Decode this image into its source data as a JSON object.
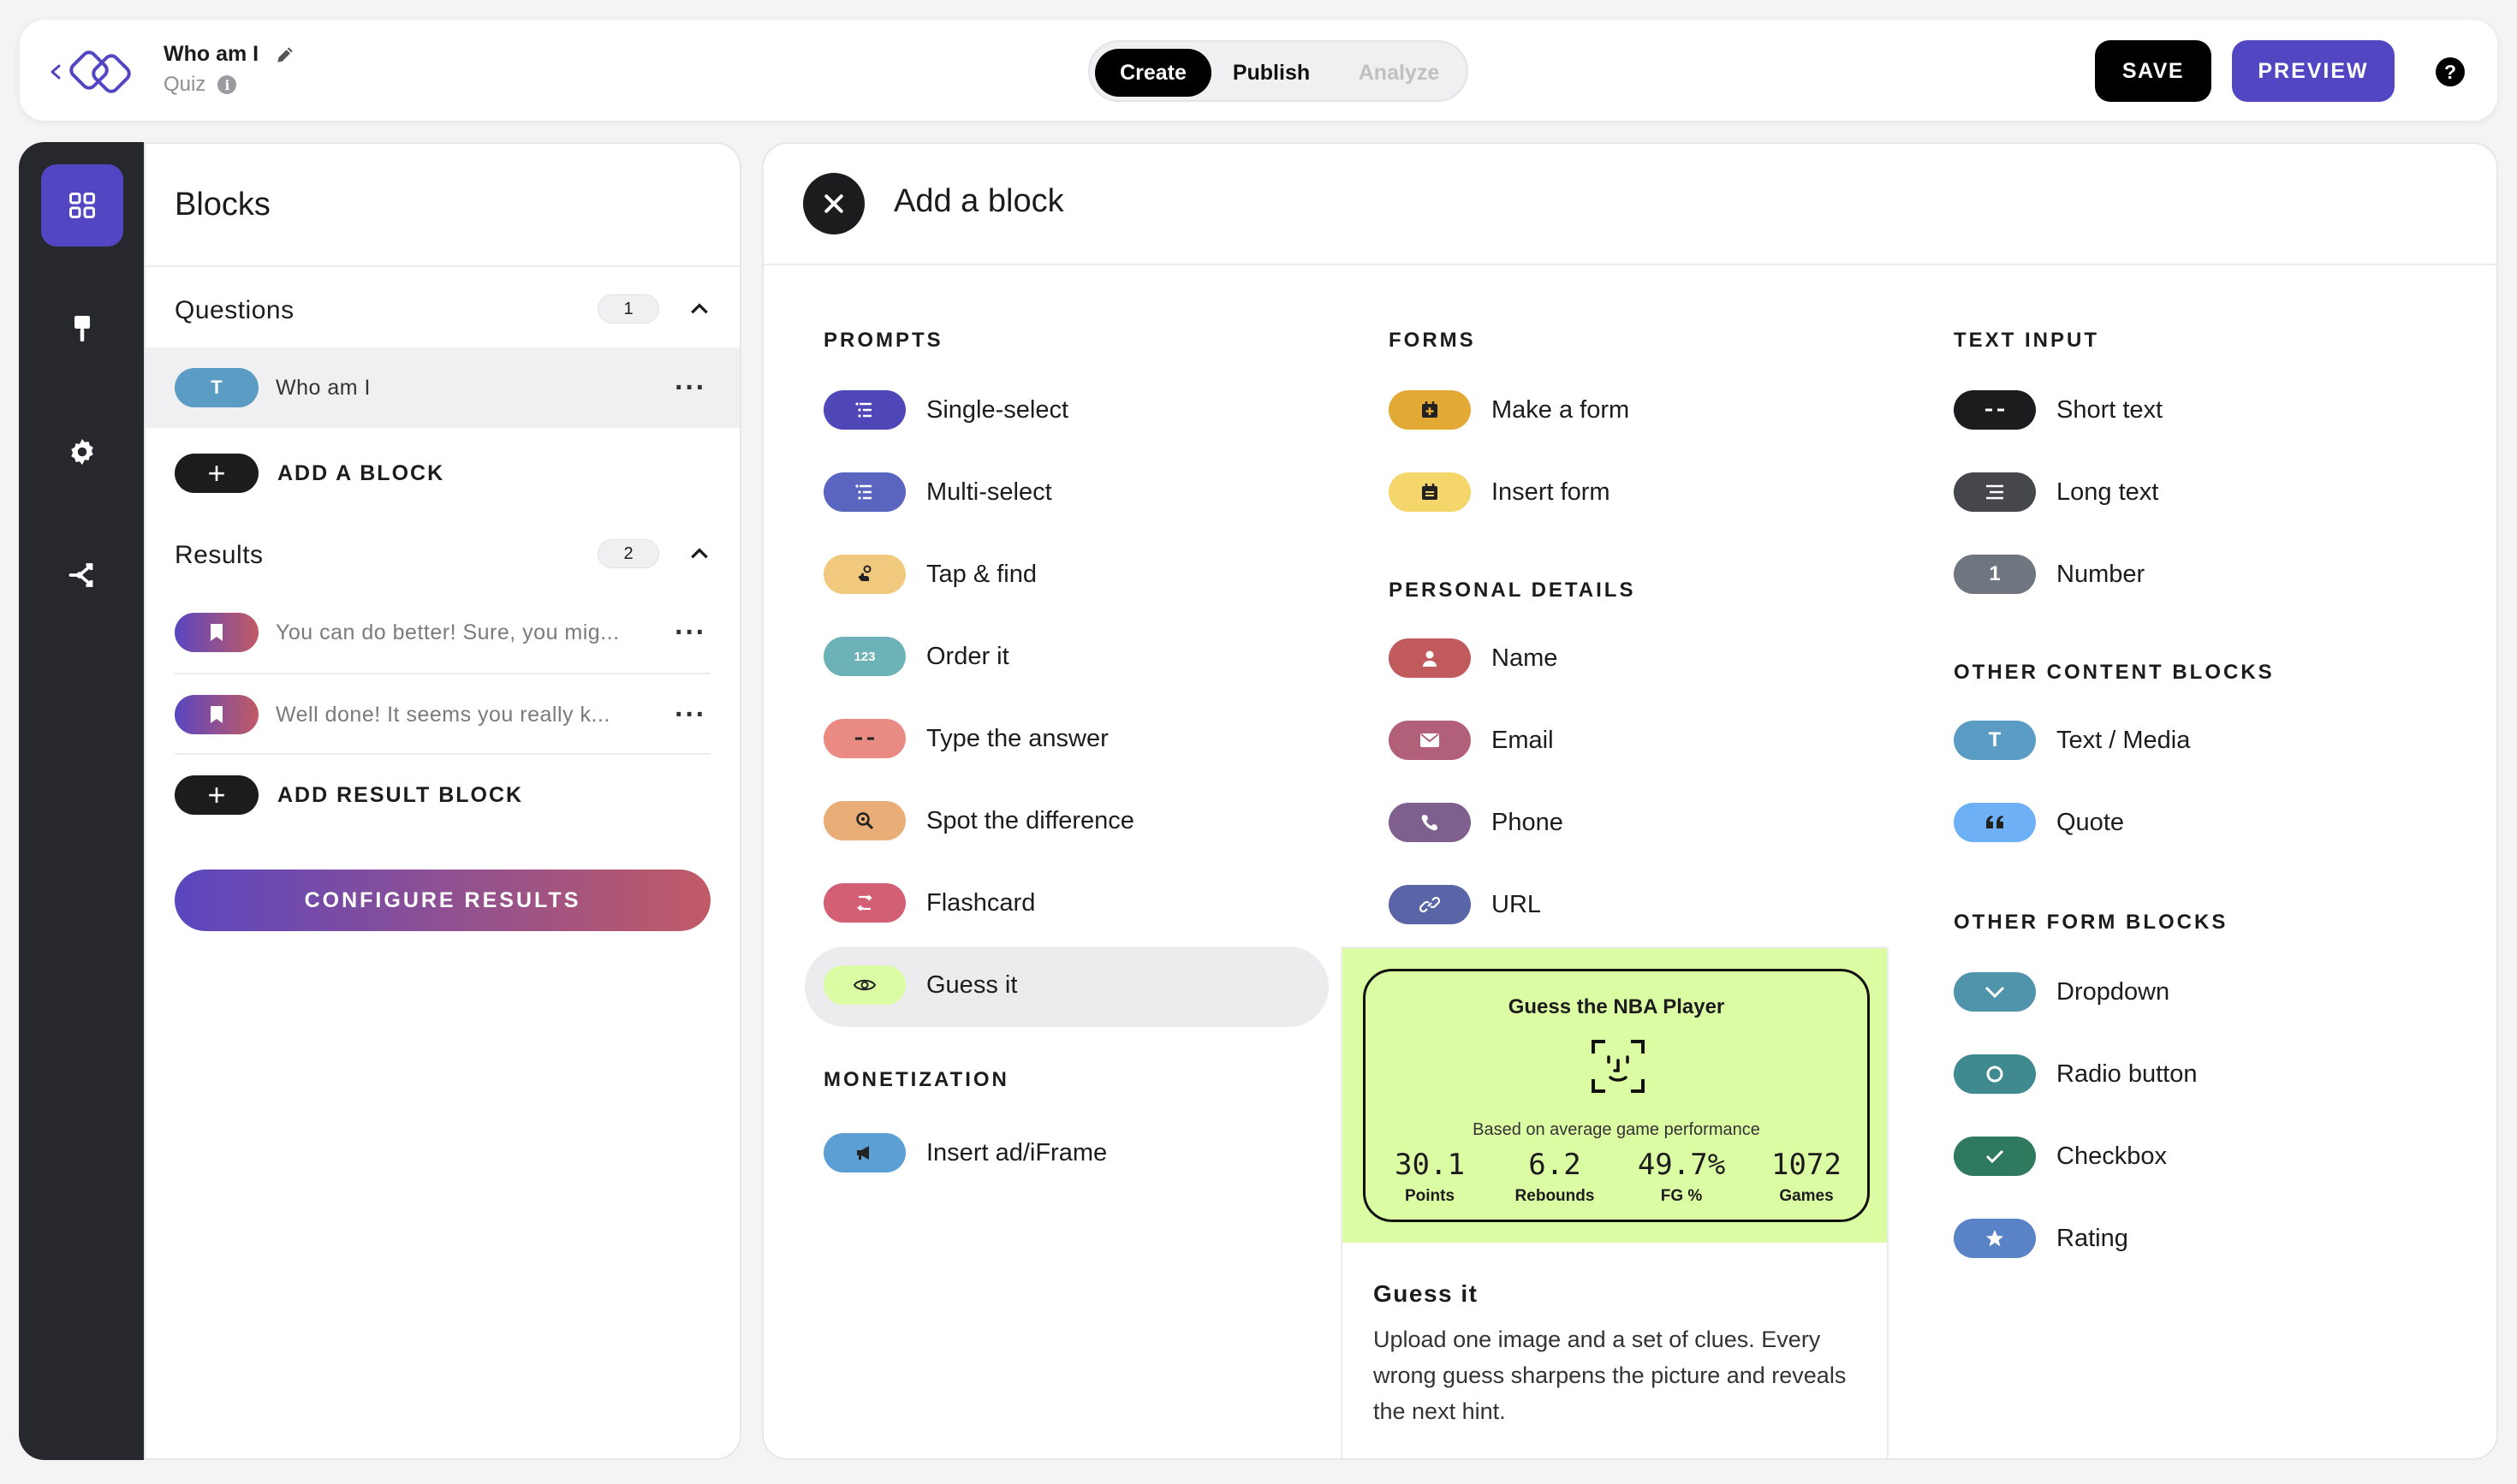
{
  "header": {
    "title": "Who am I",
    "subtitle": "Quiz",
    "tabs": [
      "Create",
      "Publish",
      "Analyze"
    ],
    "save_label": "SAVE",
    "preview_label": "PREVIEW",
    "help": "?"
  },
  "sidebar": {
    "title": "Blocks",
    "questions": {
      "label": "Questions",
      "count": "1",
      "items": [
        {
          "badge": "T",
          "label": "Who am I"
        }
      ],
      "add_label": "ADD A BLOCK"
    },
    "results": {
      "label": "Results",
      "count": "2",
      "items": [
        {
          "label": "You can do better! Sure, you mig..."
        },
        {
          "label": "Well done! It seems you really k..."
        }
      ],
      "add_label": "ADD RESULT BLOCK"
    },
    "configure_label": "CONFIGURE RESULTS"
  },
  "panel": {
    "title": "Add a block",
    "prompts": {
      "heading": "PROMPTS",
      "items": [
        "Single-select",
        "Multi-select",
        "Tap & find",
        "Order it",
        "Type the answer",
        "Spot the difference",
        "Flashcard",
        "Guess it"
      ]
    },
    "monetization": {
      "heading": "MONETIZATION",
      "items": [
        "Insert ad/iFrame"
      ]
    },
    "forms": {
      "heading": "FORMS",
      "items": [
        "Make a form",
        "Insert form"
      ]
    },
    "personal": {
      "heading": "PERSONAL DETAILS",
      "items": [
        "Name",
        "Email",
        "Phone",
        "URL"
      ]
    },
    "text_input": {
      "heading": "TEXT INPUT",
      "items": [
        "Short text",
        "Long text",
        "Number"
      ],
      "number_badge": "1",
      "order_badge": "123"
    },
    "other_content": {
      "heading": "OTHER CONTENT BLOCKS",
      "items": [
        "Text / Media",
        "Quote"
      ],
      "text_badge": "T"
    },
    "other_form": {
      "heading": "OTHER FORM BLOCKS",
      "items": [
        "Dropdown",
        "Radio button",
        "Checkbox",
        "Rating"
      ]
    }
  },
  "tooltip": {
    "card_title": "Guess the NBA Player",
    "card_subtitle": "Based on average game performance",
    "stats": [
      {
        "value": "30.1",
        "label": "Points"
      },
      {
        "value": "6.2",
        "label": "Rebounds"
      },
      {
        "value": "49.7%",
        "label": "FG %"
      },
      {
        "value": "1072",
        "label": "Games"
      }
    ],
    "title": "Guess it",
    "description": "Upload one image and a set of clues. Every wrong guess sharpens the picture and reveals the next hint."
  },
  "colors": {
    "accent": "#5346c3",
    "tooltip_bg": "#dcfca4",
    "rail_bg": "#26282d"
  }
}
